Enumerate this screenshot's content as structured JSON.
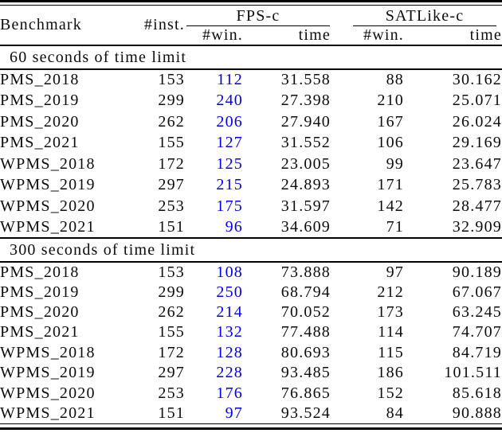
{
  "table": {
    "highlight_color": "#0000ee",
    "header": {
      "benchmark": "Benchmark",
      "inst": "#inst.",
      "groups": [
        {
          "label": "FPS-c",
          "win": "#win.",
          "time": "time"
        },
        {
          "label": "SATLike-c",
          "win": "#win.",
          "time": "time"
        }
      ]
    },
    "sections": [
      {
        "title": "60 seconds of time limit",
        "rows": [
          {
            "benchmark": "PMS_2018",
            "inst": "153",
            "fps_win": "112",
            "fps_time": "31.558",
            "sat_win": "88",
            "sat_time": "30.162"
          },
          {
            "benchmark": "PMS_2019",
            "inst": "299",
            "fps_win": "240",
            "fps_time": "27.398",
            "sat_win": "210",
            "sat_time": "25.071"
          },
          {
            "benchmark": "PMS_2020",
            "inst": "262",
            "fps_win": "206",
            "fps_time": "27.940",
            "sat_win": "167",
            "sat_time": "26.024"
          },
          {
            "benchmark": "PMS_2021",
            "inst": "155",
            "fps_win": "127",
            "fps_time": "31.552",
            "sat_win": "106",
            "sat_time": "29.169"
          },
          {
            "benchmark": "WPMS_2018",
            "inst": "172",
            "fps_win": "125",
            "fps_time": "23.005",
            "sat_win": "99",
            "sat_time": "23.647"
          },
          {
            "benchmark": "WPMS_2019",
            "inst": "297",
            "fps_win": "215",
            "fps_time": "24.893",
            "sat_win": "171",
            "sat_time": "25.783"
          },
          {
            "benchmark": "WPMS_2020",
            "inst": "253",
            "fps_win": "175",
            "fps_time": "31.597",
            "sat_win": "142",
            "sat_time": "28.477"
          },
          {
            "benchmark": "WPMS_2021",
            "inst": "151",
            "fps_win": "96",
            "fps_time": "34.609",
            "sat_win": "71",
            "sat_time": "32.909"
          }
        ]
      },
      {
        "title": "300 seconds of time limit",
        "rows": [
          {
            "benchmark": "PMS_2018",
            "inst": "153",
            "fps_win": "108",
            "fps_time": "73.888",
            "sat_win": "97",
            "sat_time": "90.189"
          },
          {
            "benchmark": "PMS_2019",
            "inst": "299",
            "fps_win": "250",
            "fps_time": "68.794",
            "sat_win": "212",
            "sat_time": "67.067"
          },
          {
            "benchmark": "PMS_2020",
            "inst": "262",
            "fps_win": "214",
            "fps_time": "70.052",
            "sat_win": "173",
            "sat_time": "63.245"
          },
          {
            "benchmark": "PMS_2021",
            "inst": "155",
            "fps_win": "132",
            "fps_time": "77.488",
            "sat_win": "114",
            "sat_time": "74.707"
          },
          {
            "benchmark": "WPMS_2018",
            "inst": "172",
            "fps_win": "128",
            "fps_time": "80.693",
            "sat_win": "115",
            "sat_time": "84.719"
          },
          {
            "benchmark": "WPMS_2019",
            "inst": "297",
            "fps_win": "228",
            "fps_time": "93.485",
            "sat_win": "186",
            "sat_time": "101.511"
          },
          {
            "benchmark": "WPMS_2020",
            "inst": "253",
            "fps_win": "176",
            "fps_time": "76.865",
            "sat_win": "152",
            "sat_time": "85.618"
          },
          {
            "benchmark": "WPMS_2021",
            "inst": "151",
            "fps_win": "97",
            "fps_time": "93.524",
            "sat_win": "84",
            "sat_time": "90.888"
          }
        ]
      }
    ]
  }
}
